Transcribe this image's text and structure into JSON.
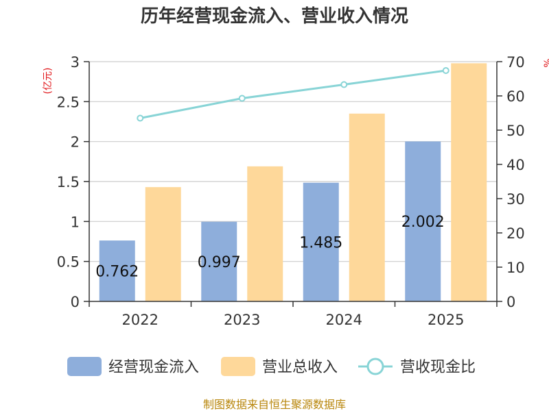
{
  "chart_data": {
    "type": "bar",
    "title": "历年经营现金流入、营业收入情况",
    "categories": [
      "2022",
      "2023",
      "2024",
      "2025"
    ],
    "series": [
      {
        "name": "经营现金流入",
        "axis": "left",
        "values": [
          0.762,
          0.997,
          1.485,
          2.002
        ],
        "color": "#8eaedb",
        "labels": [
          "0.762",
          "0.997",
          "1.485",
          "2.002"
        ]
      },
      {
        "name": "营业总收入",
        "axis": "left",
        "values": [
          1.43,
          1.69,
          2.35,
          2.98
        ],
        "color": "#fed89a"
      },
      {
        "name": "营收现金比",
        "axis": "right",
        "type": "line",
        "values": [
          53.5,
          59.3,
          63.3,
          67.4
        ],
        "color": "#88d4d6"
      }
    ],
    "left_axis": {
      "unit": "(亿元)",
      "ylim": [
        0,
        3
      ],
      "ticks": [
        "0",
        "0.5",
        "1",
        "1.5",
        "2",
        "2.5",
        "3"
      ]
    },
    "right_axis": {
      "unit": "%",
      "ylim": [
        0,
        70
      ],
      "ticks": [
        "0",
        "10",
        "20",
        "30",
        "40",
        "50",
        "60",
        "70"
      ]
    },
    "grid": true,
    "legend_position": "bottom"
  },
  "source": "制图数据来自恒生聚源数据库"
}
